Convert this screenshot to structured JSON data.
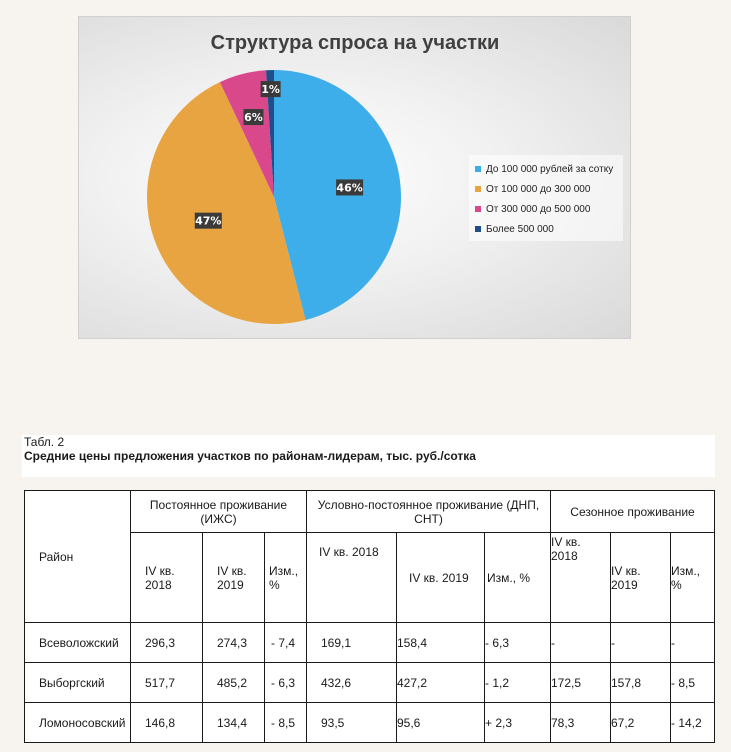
{
  "chart_data": {
    "type": "pie",
    "title": "Структура спроса на участки",
    "categories": [
      "До 100 000 рублей за сотку",
      "От 100 000 до 300 000",
      "От 300 000 до 500 000",
      "Более 500 000"
    ],
    "values": [
      46,
      47,
      6,
      1
    ],
    "labels": [
      "46%",
      "47%",
      "6%",
      "1%"
    ],
    "colors": [
      "#3daee9",
      "#e8a440",
      "#d9488a",
      "#1e4f8a"
    ],
    "legend_position": "right"
  },
  "table": {
    "number": "Табл. 2",
    "title": "Средние цены предложения участков по районам-лидерам, тыс. руб./сотка",
    "header_district": "Район",
    "groups": [
      "Постоянное проживание (ИЖС)",
      "Условно-постоянное проживание (ДНП, СНТ)",
      "Сезонное проживание"
    ],
    "subheaders": [
      "IV кв. 2018",
      "IV кв. 2019",
      "Изм., %",
      "IV кв. 2018",
      "IV кв. 2019",
      "Изм., %",
      "IV кв. 2018",
      "IV кв. 2019",
      "Изм., %"
    ],
    "rows": [
      {
        "district": "Всеволожский",
        "cells": [
          "296,3",
          "274,3",
          "- 7,4",
          "169,1",
          "158,4",
          "- 6,3",
          "-",
          "-",
          "-"
        ]
      },
      {
        "district": "Выборгский",
        "cells": [
          "517,7",
          "485,2",
          "- 6,3",
          "432,6",
          "427,2",
          "- 1,2",
          "172,5",
          "157,8",
          "- 8,5"
        ]
      },
      {
        "district": "Ломоносовский",
        "cells": [
          "146,8",
          "134,4",
          "- 8,5",
          "93,5",
          "95,6",
          "+ 2,3",
          "78,3",
          "67,2",
          "- 14,2"
        ]
      }
    ]
  }
}
